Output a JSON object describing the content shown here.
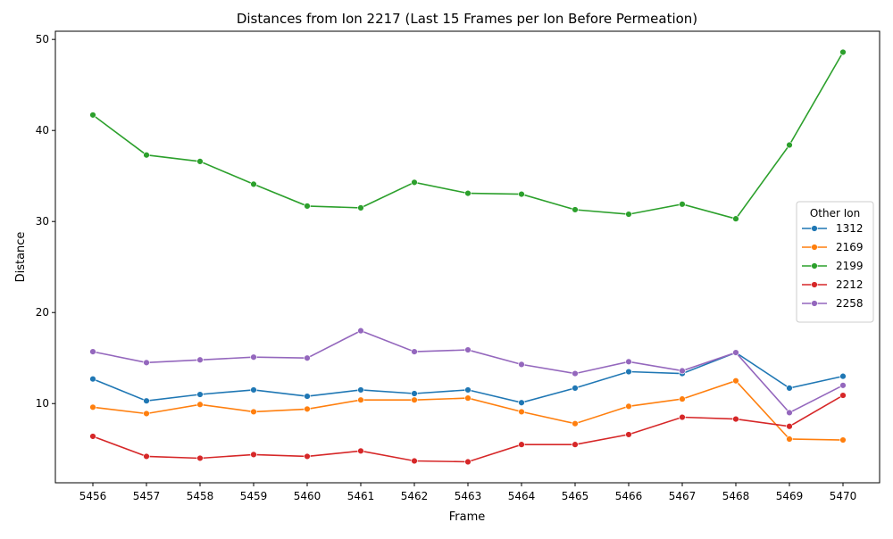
{
  "chart_data": {
    "type": "line",
    "title": "Distances from Ion 2217 (Last 15 Frames per Ion Before Permeation)",
    "xlabel": "Frame",
    "ylabel": "Distance",
    "x": [
      5456,
      5457,
      5458,
      5459,
      5460,
      5461,
      5462,
      5463,
      5464,
      5465,
      5466,
      5467,
      5468,
      5469,
      5470
    ],
    "ylim": [
      1.3,
      50.9
    ],
    "yticks": [
      10,
      20,
      30,
      40,
      50
    ],
    "grid": false,
    "legend": {
      "title": "Other Ion",
      "placement": "center-right"
    },
    "series": [
      {
        "name": "1312",
        "color": "#1f77b4",
        "values": [
          12.7,
          10.3,
          11.0,
          11.5,
          10.8,
          11.5,
          11.1,
          11.5,
          10.1,
          11.7,
          13.5,
          13.3,
          15.6,
          11.7,
          13.0
        ]
      },
      {
        "name": "2169",
        "color": "#ff7f0e",
        "values": [
          9.6,
          8.9,
          9.9,
          9.1,
          9.4,
          10.4,
          10.4,
          10.6,
          9.1,
          7.8,
          9.7,
          10.5,
          12.5,
          6.1,
          6.0
        ]
      },
      {
        "name": "2199",
        "color": "#2ca02c",
        "values": [
          41.7,
          37.3,
          36.6,
          34.1,
          31.7,
          31.5,
          34.3,
          33.1,
          33.0,
          31.3,
          30.8,
          31.9,
          30.3,
          38.4,
          48.6
        ]
      },
      {
        "name": "2212",
        "color": "#d62728",
        "values": [
          6.4,
          4.2,
          4.0,
          4.4,
          4.2,
          4.8,
          3.7,
          3.6,
          5.5,
          5.5,
          6.6,
          8.5,
          8.3,
          7.5,
          10.9
        ]
      },
      {
        "name": "2258",
        "color": "#9467bd",
        "values": [
          15.7,
          14.5,
          14.8,
          15.1,
          15.0,
          18.0,
          15.7,
          15.9,
          14.3,
          13.3,
          14.6,
          13.6,
          15.6,
          9.0,
          12.0
        ]
      }
    ]
  }
}
